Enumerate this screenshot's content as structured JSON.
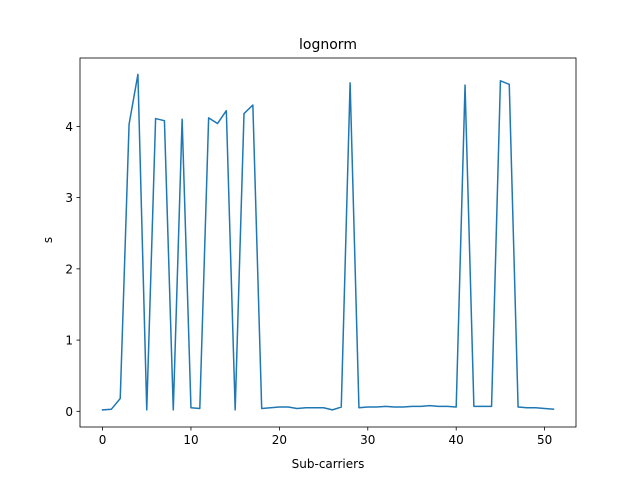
{
  "chart_data": {
    "type": "line",
    "title": "lognorm",
    "xlabel": "Sub-carriers",
    "ylabel": "s",
    "xlim": [
      -2.55,
      53.55
    ],
    "ylim": [
      -0.22,
      4.96
    ],
    "xticks": [
      0,
      10,
      20,
      30,
      40,
      50
    ],
    "yticks": [
      0,
      1,
      2,
      3,
      4
    ],
    "grid": false,
    "legend": "none",
    "series": [
      {
        "color": "#1f77b4",
        "x": [
          0,
          1,
          2,
          3,
          4,
          5,
          6,
          7,
          8,
          9,
          10,
          11,
          12,
          13,
          14,
          15,
          16,
          17,
          18,
          19,
          20,
          21,
          22,
          23,
          24,
          25,
          26,
          27,
          28,
          29,
          30,
          31,
          32,
          33,
          34,
          35,
          36,
          37,
          38,
          39,
          40,
          41,
          42,
          43,
          44,
          45,
          46,
          47,
          48,
          49,
          50,
          51
        ],
        "y": [
          0.02,
          0.03,
          0.18,
          4.03,
          4.73,
          0.02,
          4.11,
          4.08,
          0.02,
          4.1,
          0.05,
          0.04,
          4.12,
          4.04,
          4.22,
          0.02,
          4.18,
          4.3,
          0.04,
          0.05,
          0.06,
          0.06,
          0.04,
          0.05,
          0.05,
          0.05,
          0.02,
          0.06,
          4.61,
          0.05,
          0.06,
          0.06,
          0.07,
          0.06,
          0.06,
          0.07,
          0.07,
          0.08,
          0.07,
          0.07,
          0.06,
          4.58,
          0.07,
          0.07,
          0.07,
          4.64,
          4.59,
          0.06,
          0.05,
          0.05,
          0.04,
          0.03
        ]
      }
    ]
  }
}
